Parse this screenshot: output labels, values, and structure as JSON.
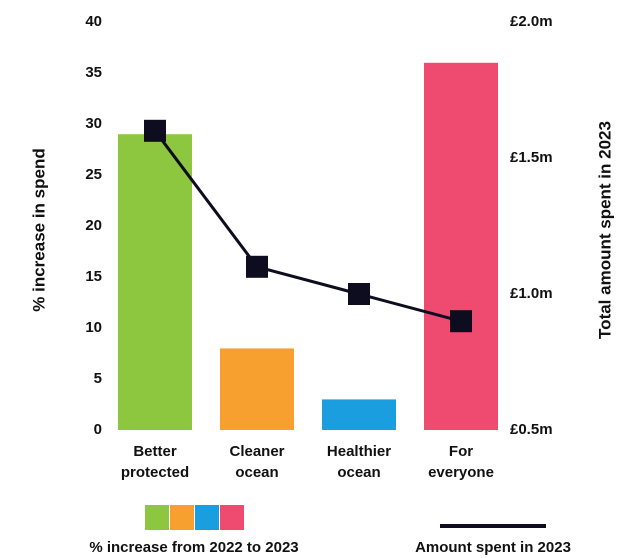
{
  "chart_data": {
    "type": "bar",
    "categories": [
      "Better protected",
      "Cleaner ocean",
      "Healthier ocean",
      "For everyone"
    ],
    "series": [
      {
        "name": "% increase from 2022 to 2023",
        "type": "bar",
        "colors": [
          "#8dc63f",
          "#f7a030",
          "#1a9ee0",
          "#ef4a6f"
        ],
        "values": [
          29,
          8,
          3,
          36
        ]
      },
      {
        "name": "Amount spent in 2023",
        "type": "line",
        "axis": "y2",
        "color": "#0d0d1f",
        "values": [
          1.6,
          1.1,
          1.0,
          0.9
        ]
      }
    ],
    "ylabel": "% increase in spend",
    "y2label": "Total amount spent in 2023",
    "ylim": [
      0,
      40
    ],
    "yticks": [
      0,
      5,
      10,
      15,
      20,
      25,
      30,
      35,
      40
    ],
    "y2lim": [
      0.5,
      2.0
    ],
    "y2ticks": [
      {
        "value": 0.5,
        "label": "£0.5m"
      },
      {
        "value": 1.0,
        "label": "£1.0m"
      },
      {
        "value": 1.5,
        "label": "£1.5m"
      },
      {
        "value": 2.0,
        "label": "£2.0m"
      }
    ],
    "grid": false
  }
}
